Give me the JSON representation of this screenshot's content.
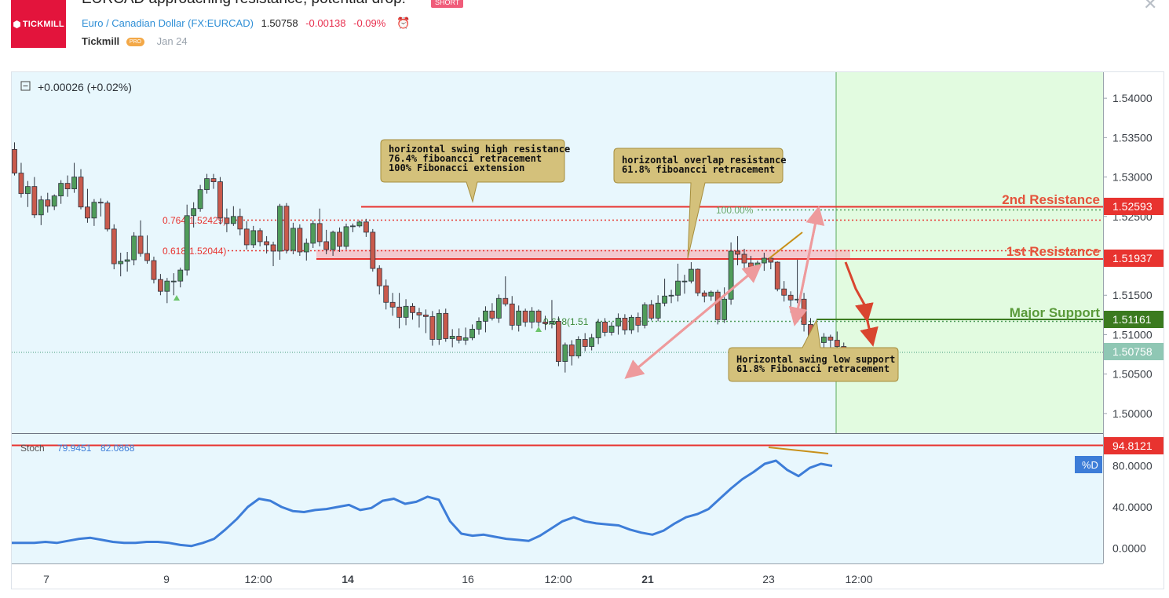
{
  "header": {
    "title": "EURCAD approaching resistance, potential drop!",
    "badge": "SHORT",
    "logo_text": "TICKMILL",
    "symbol_name": "Euro / Canadian Dollar",
    "symbol_code": "(FX:EURCAD)",
    "price": "1.50758",
    "change": "-0.00138",
    "change_pct": "-0.09%",
    "author": "Tickmill",
    "author_badge": "PRO",
    "date": "Jan 24"
  },
  "colors": {
    "resistance": "#e8332f",
    "support": "#3b7a1f",
    "stoch_line": "#3d7dd8",
    "candle_up": "#4f9c5a",
    "candle_down": "#c95a4c",
    "forecast_zone": "#e2fbe0",
    "plot_bg": "#e8f7fd"
  },
  "chart_data": [
    {
      "type": "candlestick",
      "panel": "price",
      "legend_text": "+0.00026 (+0.02%)",
      "ylim": [
        1.4975,
        1.5433
      ],
      "y_ticks": [
        "1.54000",
        "1.53500",
        "1.53000",
        "1.52500",
        "1.51500",
        "1.51000",
        "1.50500",
        "1.50000"
      ],
      "x_ticks": [
        "7",
        "9",
        "12:00",
        "14",
        "16",
        "12:00",
        "21",
        "23",
        "12:00"
      ],
      "ohlc": [
        [
          1.5335,
          1.5344,
          1.5302,
          1.5305
        ],
        [
          1.5305,
          1.5318,
          1.5274,
          1.5279
        ],
        [
          1.5279,
          1.5295,
          1.5262,
          1.5288
        ],
        [
          1.5288,
          1.53,
          1.5248,
          1.5252
        ],
        [
          1.5252,
          1.5276,
          1.5239,
          1.5271
        ],
        [
          1.5271,
          1.528,
          1.5255,
          1.5263
        ],
        [
          1.5263,
          1.5278,
          1.5258,
          1.5276
        ],
        [
          1.5276,
          1.5296,
          1.5266,
          1.5292
        ],
        [
          1.5292,
          1.5302,
          1.5275,
          1.5285
        ],
        [
          1.5285,
          1.5318,
          1.528,
          1.53
        ],
        [
          1.53,
          1.531,
          1.5259,
          1.5262
        ],
        [
          1.5262,
          1.5285,
          1.5242,
          1.5248
        ],
        [
          1.5248,
          1.5272,
          1.5238,
          1.5268
        ],
        [
          1.5268,
          1.5273,
          1.525,
          1.5267
        ],
        [
          1.5267,
          1.527,
          1.5231,
          1.5234
        ],
        [
          1.5234,
          1.524,
          1.5183,
          1.519
        ],
        [
          1.519,
          1.5204,
          1.5174,
          1.5193
        ],
        [
          1.5193,
          1.5205,
          1.518,
          1.5195
        ],
        [
          1.5195,
          1.523,
          1.5188,
          1.5225
        ],
        [
          1.5225,
          1.5245,
          1.5199,
          1.5203
        ],
        [
          1.5203,
          1.5226,
          1.519,
          1.5194
        ],
        [
          1.5194,
          1.5199,
          1.5165,
          1.517
        ],
        [
          1.517,
          1.5177,
          1.515,
          1.5155
        ],
        [
          1.5155,
          1.5172,
          1.514,
          1.5168
        ],
        [
          1.5168,
          1.5178,
          1.515,
          1.5168
        ],
        [
          1.5168,
          1.5185,
          1.516,
          1.5182
        ],
        [
          1.5182,
          1.5265,
          1.5175,
          1.5251
        ],
        [
          1.5251,
          1.5268,
          1.5236,
          1.526
        ],
        [
          1.526,
          1.529,
          1.5256,
          1.5284
        ],
        [
          1.5284,
          1.5304,
          1.5279,
          1.5298
        ],
        [
          1.5298,
          1.5304,
          1.5285,
          1.5294
        ],
        [
          1.5294,
          1.53,
          1.524,
          1.5248
        ],
        [
          1.5248,
          1.526,
          1.523,
          1.5241
        ],
        [
          1.5241,
          1.5263,
          1.5238,
          1.525
        ],
        [
          1.525,
          1.526,
          1.5226,
          1.5234
        ],
        [
          1.5234,
          1.5244,
          1.5208,
          1.5214
        ],
        [
          1.5214,
          1.5238,
          1.521,
          1.5232
        ],
        [
          1.5232,
          1.5235,
          1.5212,
          1.5218
        ],
        [
          1.5218,
          1.5225,
          1.5203,
          1.5214
        ],
        [
          1.5214,
          1.5218,
          1.5187,
          1.5206
        ],
        [
          1.5206,
          1.5266,
          1.5195,
          1.5263
        ],
        [
          1.5263,
          1.5267,
          1.5203,
          1.5207
        ],
        [
          1.5207,
          1.5242,
          1.5202,
          1.5235
        ],
        [
          1.5235,
          1.524,
          1.52,
          1.5205
        ],
        [
          1.5205,
          1.5222,
          1.5194,
          1.5216
        ],
        [
          1.5216,
          1.5245,
          1.521,
          1.5241
        ],
        [
          1.5241,
          1.526,
          1.5212,
          1.5218
        ],
        [
          1.5218,
          1.5233,
          1.5202,
          1.5208
        ],
        [
          1.5208,
          1.5232,
          1.52,
          1.523
        ],
        [
          1.523,
          1.5236,
          1.5205,
          1.5212
        ],
        [
          1.5212,
          1.5241,
          1.5208,
          1.5237
        ],
        [
          1.5237,
          1.5241,
          1.523,
          1.5238
        ],
        [
          1.5238,
          1.5245,
          1.5236,
          1.5243
        ],
        [
          1.5243,
          1.5247,
          1.5224,
          1.523
        ],
        [
          1.523,
          1.5234,
          1.518,
          1.5184
        ],
        [
          1.5184,
          1.5188,
          1.5151,
          1.5162
        ],
        [
          1.5162,
          1.517,
          1.5132,
          1.5141
        ],
        [
          1.5141,
          1.5153,
          1.5124,
          1.5135
        ],
        [
          1.5135,
          1.5153,
          1.5108,
          1.5122
        ],
        [
          1.5122,
          1.5145,
          1.5112,
          1.5136
        ],
        [
          1.5136,
          1.514,
          1.5119,
          1.5128
        ],
        [
          1.5128,
          1.5134,
          1.5109,
          1.5125
        ],
        [
          1.5125,
          1.5132,
          1.5102,
          1.5123
        ],
        [
          1.5123,
          1.513,
          1.5086,
          1.5094
        ],
        [
          1.5094,
          1.5132,
          1.5087,
          1.5127
        ],
        [
          1.5127,
          1.5133,
          1.5091,
          1.5095
        ],
        [
          1.5095,
          1.5107,
          1.5084,
          1.5098
        ],
        [
          1.5098,
          1.5108,
          1.5089,
          1.5093
        ],
        [
          1.5093,
          1.5109,
          1.5087,
          1.5096
        ],
        [
          1.5096,
          1.5113,
          1.5093,
          1.5107
        ],
        [
          1.5107,
          1.5122,
          1.51,
          1.5117
        ],
        [
          1.5117,
          1.5136,
          1.5103,
          1.513
        ],
        [
          1.513,
          1.514,
          1.5118,
          1.5121
        ],
        [
          1.5121,
          1.5151,
          1.5115,
          1.5146
        ],
        [
          1.5146,
          1.5174,
          1.5136,
          1.5139
        ],
        [
          1.5139,
          1.5149,
          1.5106,
          1.5112
        ],
        [
          1.5112,
          1.5137,
          1.5104,
          1.513
        ],
        [
          1.513,
          1.5133,
          1.511,
          1.5116
        ],
        [
          1.5116,
          1.5135,
          1.5108,
          1.513
        ],
        [
          1.513,
          1.5132,
          1.511,
          1.5116
        ],
        [
          1.5116,
          1.5124,
          1.5106,
          1.5114
        ],
        [
          1.5114,
          1.5144,
          1.5108,
          1.5117
        ],
        [
          1.5117,
          1.5123,
          1.506,
          1.5066
        ],
        [
          1.5066,
          1.509,
          1.5052,
          1.5087
        ],
        [
          1.5087,
          1.5093,
          1.5061,
          1.5073
        ],
        [
          1.5073,
          1.5098,
          1.507,
          1.5094
        ],
        [
          1.5094,
          1.5102,
          1.5079,
          1.5085
        ],
        [
          1.5085,
          1.5101,
          1.508,
          1.5096
        ],
        [
          1.5096,
          1.512,
          1.5088,
          1.5116
        ],
        [
          1.5116,
          1.5121,
          1.5098,
          1.5103
        ],
        [
          1.5103,
          1.5116,
          1.5099,
          1.5111
        ],
        [
          1.5111,
          1.5127,
          1.51,
          1.5121
        ],
        [
          1.5121,
          1.5126,
          1.51,
          1.5106
        ],
        [
          1.5106,
          1.5125,
          1.5101,
          1.5122
        ],
        [
          1.5122,
          1.5128,
          1.5103,
          1.5112
        ],
        [
          1.5112,
          1.5141,
          1.5108,
          1.5138
        ],
        [
          1.5138,
          1.5144,
          1.5118,
          1.5121
        ],
        [
          1.5121,
          1.515,
          1.5117,
          1.514
        ],
        [
          1.514,
          1.5171,
          1.5136,
          1.5149
        ],
        [
          1.5149,
          1.5157,
          1.514,
          1.515
        ],
        [
          1.515,
          1.519,
          1.5142,
          1.5168
        ],
        [
          1.5168,
          1.5176,
          1.5152,
          1.5168
        ],
        [
          1.5168,
          1.5192,
          1.5165,
          1.5183
        ],
        [
          1.5183,
          1.5184,
          1.5149,
          1.5153
        ],
        [
          1.5153,
          1.5156,
          1.5141,
          1.5149
        ],
        [
          1.5149,
          1.5156,
          1.5143,
          1.5154
        ],
        [
          1.5154,
          1.5157,
          1.5113,
          1.5119
        ],
        [
          1.5119,
          1.516,
          1.5115,
          1.5145
        ],
        [
          1.5145,
          1.5217,
          1.5138,
          1.5206
        ],
        [
          1.5206,
          1.5225,
          1.5188,
          1.5202
        ],
        [
          1.5202,
          1.5209,
          1.5184,
          1.5191
        ],
        [
          1.5191,
          1.52,
          1.5182,
          1.5186
        ],
        [
          1.5186,
          1.5194,
          1.5182,
          1.5191
        ],
        [
          1.5191,
          1.5204,
          1.5181,
          1.5197
        ],
        [
          1.5197,
          1.5199,
          1.5183,
          1.5192
        ],
        [
          1.5192,
          1.5193,
          1.5155,
          1.5158
        ],
        [
          1.5158,
          1.5168,
          1.5142,
          1.515
        ],
        [
          1.515,
          1.5155,
          1.5128,
          1.5144
        ],
        [
          1.5144,
          1.5195,
          1.514,
          1.5145
        ],
        [
          1.5145,
          1.5153,
          1.5104,
          1.5113
        ],
        [
          1.5113,
          1.5121,
          1.508,
          1.5088
        ],
        [
          1.5088,
          1.5096,
          1.5082,
          1.509
        ],
        [
          1.509,
          1.5102,
          1.5081,
          1.5097
        ],
        [
          1.5097,
          1.51,
          1.5083,
          1.5093
        ],
        [
          1.5093,
          1.5104,
          1.5083,
          1.5085
        ],
        [
          1.5085,
          1.509,
          1.5074,
          1.5076
        ]
      ],
      "levels": [
        {
          "label": "2nd Resistance",
          "price": 1.52593,
          "price_label": "1.52593"
        },
        {
          "label": "1st Resistance",
          "price": 1.51937,
          "price_label": "1.51937"
        },
        {
          "label": "Major Support",
          "price": 1.51161,
          "price_label": "1.51161"
        },
        {
          "price": 1.50758,
          "price_label": "1.50758"
        }
      ],
      "fib_labels": [
        "0.764(1.52429)",
        "0.618(1.52044)",
        "0.618(1.51",
        "100.00%"
      ],
      "annotations": [
        [
          "horizontal swing high resistance",
          "76.4% fiboancci retracement",
          "100% Fibonacci extension"
        ],
        [
          "horizontal overlap resistance",
          "61.8% fiboancci retracement"
        ],
        [
          "Horizontal swing low support",
          "61.8% Fibonacci retracement"
        ]
      ]
    },
    {
      "type": "line",
      "panel": "stochastic",
      "legend": "Stoch",
      "legend_values": [
        "79.9451",
        "82.0868"
      ],
      "series_label": "%D",
      "level_label": "94.8121",
      "level": 94.8121,
      "ylim": [
        -15,
        111
      ],
      "y_ticks": [
        "80.0000",
        "40.0000",
        "0.0000"
      ],
      "values": [
        5,
        5,
        5,
        6,
        5,
        7,
        9,
        10,
        8,
        6,
        5,
        5,
        6,
        6,
        5,
        3,
        2,
        5,
        9,
        18,
        28,
        40,
        48,
        46,
        40,
        36,
        35,
        37,
        38,
        40,
        42,
        37,
        39,
        46,
        48,
        43,
        45,
        50,
        47,
        26,
        14,
        12,
        13,
        11,
        9,
        8,
        7,
        12,
        19,
        26,
        30,
        26,
        24,
        23,
        22,
        18,
        15,
        13,
        17,
        24,
        30,
        33,
        38,
        48,
        58,
        67,
        74,
        82,
        85,
        76,
        70,
        78,
        82,
        80
      ]
    }
  ]
}
